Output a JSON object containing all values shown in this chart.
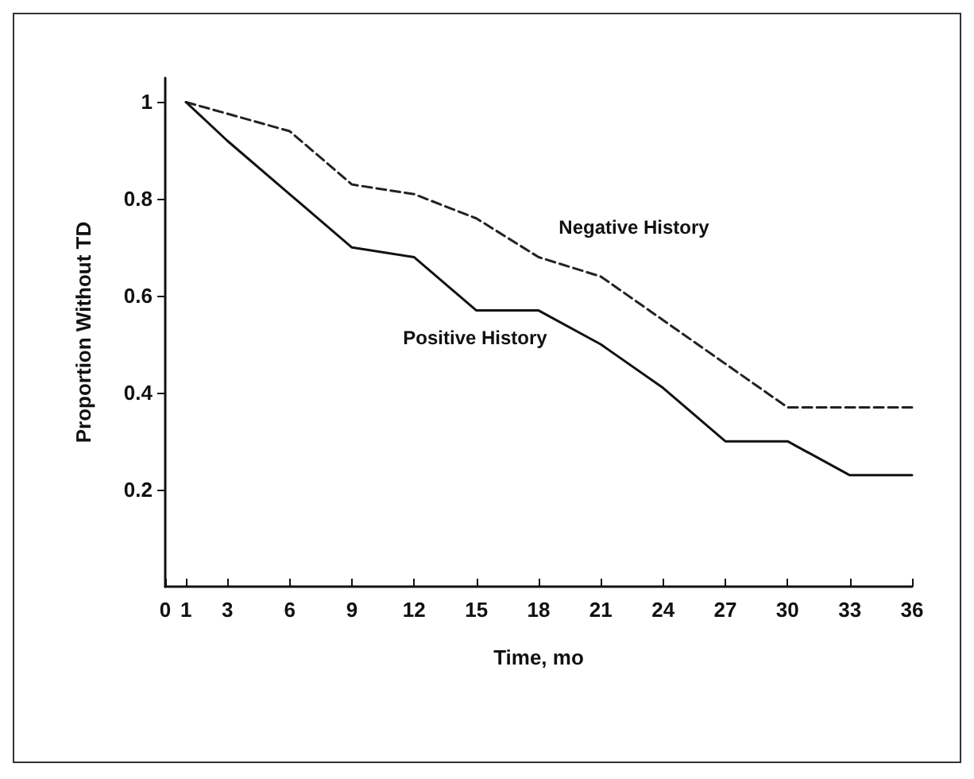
{
  "chart_data": {
    "type": "line",
    "xlabel": "Time, mo",
    "ylabel": "Proportion Without TD",
    "xlim": [
      0,
      36
    ],
    "xticks": [
      0,
      1,
      3,
      6,
      9,
      12,
      15,
      18,
      21,
      24,
      27,
      30,
      33,
      36
    ],
    "ylim": [
      0,
      1.05
    ],
    "yticks": [
      0.2,
      0.4,
      0.6,
      0.8,
      1
    ],
    "grid": false,
    "legend": false,
    "marker": "none",
    "series": [
      {
        "name": "Negative History",
        "color": "#222222",
        "line_style": "dashed",
        "x": [
          1,
          6,
          9,
          12,
          15,
          18,
          21,
          24,
          27,
          30,
          36
        ],
        "values": [
          1,
          0.94,
          0.83,
          0.81,
          0.76,
          0.68,
          0.64,
          0.55,
          0.46,
          0.37,
          0.37
        ]
      },
      {
        "name": "Positive History",
        "color": "#111111",
        "line_style": "solid",
        "x": [
          1,
          3,
          6,
          9,
          12,
          15,
          18,
          21,
          24,
          27,
          30,
          33,
          36
        ],
        "values": [
          1,
          0.92,
          0.81,
          0.7,
          0.68,
          0.57,
          0.57,
          0.5,
          0.41,
          0.3,
          0.3,
          0.23,
          0.23
        ]
      }
    ]
  }
}
